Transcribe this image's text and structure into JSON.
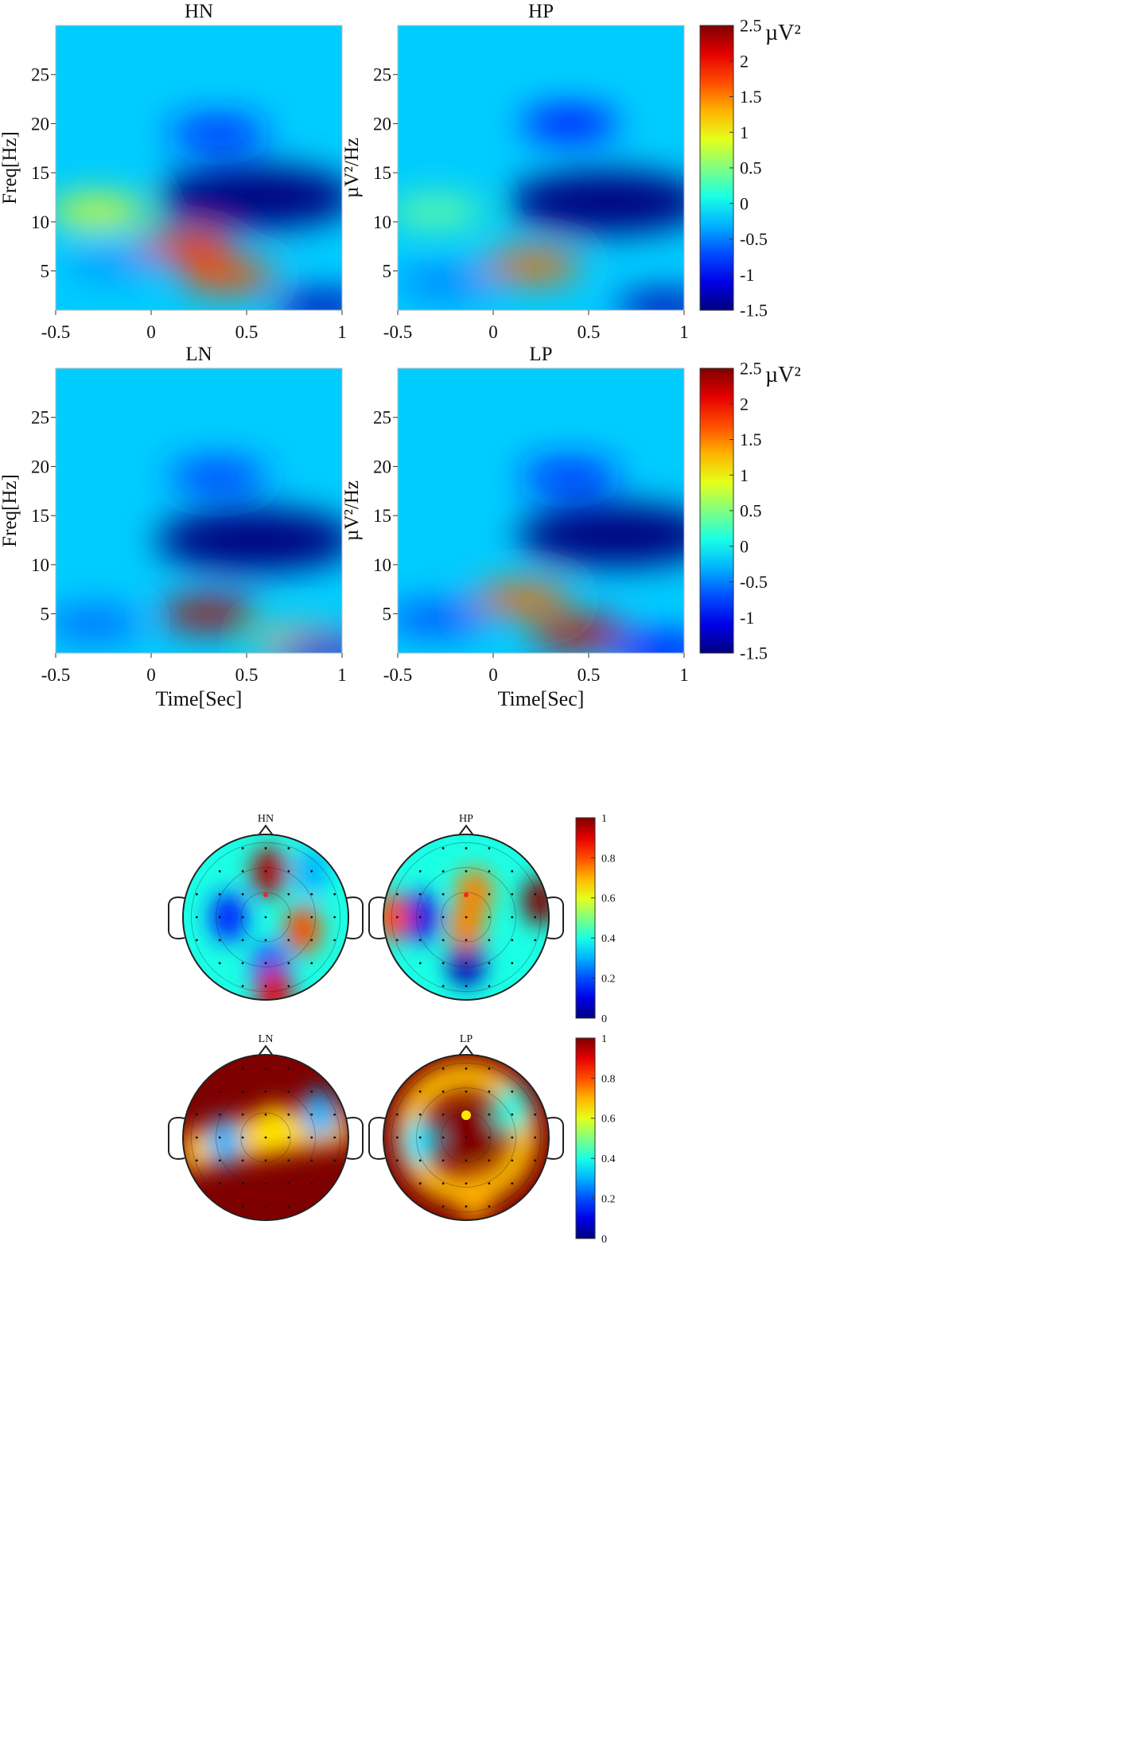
{
  "chart_data": [
    {
      "type": "heatmap",
      "title": "HN",
      "xlabel": "",
      "ylabel": "Freq[Hz]",
      "xlim": [
        -0.5,
        1
      ],
      "ylim": [
        1,
        30
      ],
      "x_ticks": [
        "-0.5",
        "0",
        "0.5",
        "1"
      ],
      "y_ticks": [
        "5",
        "10",
        "15",
        "20",
        "25"
      ],
      "colormap": "jet",
      "blobs": [
        {
          "t": 0.55,
          "f": 12.5,
          "value": -1.5
        },
        {
          "t": 0.35,
          "f": 19,
          "value": -0.9
        },
        {
          "t": -0.28,
          "f": 11,
          "value": 0.9
        },
        {
          "t": 0.18,
          "f": 7.5,
          "value": 1.8
        },
        {
          "t": 0.4,
          "f": 4.5,
          "value": 1.7
        },
        {
          "t": -0.2,
          "f": 5.8,
          "value": -0.4
        },
        {
          "t": 0.9,
          "f": 1.3,
          "value": -1.3
        }
      ]
    },
    {
      "type": "heatmap",
      "title": "HP",
      "xlabel": "",
      "ylabel": "µV²/Hz",
      "xlim": [
        -0.5,
        1
      ],
      "ylim": [
        1,
        30
      ],
      "x_ticks": [
        "-0.5",
        "0",
        "0.5",
        "1"
      ],
      "y_ticks": [
        "5",
        "10",
        "15",
        "20",
        "25"
      ],
      "colormap": "jet",
      "blobs": [
        {
          "t": 0.6,
          "f": 12,
          "value": -1.5
        },
        {
          "t": 0.4,
          "f": 20,
          "value": -1.0
        },
        {
          "t": -0.3,
          "f": 11,
          "value": 0.4
        },
        {
          "t": 0.2,
          "f": 5.5,
          "value": 1.6
        },
        {
          "t": -0.25,
          "f": 3.8,
          "value": -0.5
        },
        {
          "t": 0.9,
          "f": 1.3,
          "value": -1.3
        }
      ]
    },
    {
      "type": "heatmap",
      "title": "LN",
      "xlabel": "Time[Sec]",
      "ylabel": "Freq[Hz]",
      "xlim": [
        -0.5,
        1
      ],
      "ylim": [
        1,
        30
      ],
      "x_ticks": [
        "-0.5",
        "0",
        "0.5",
        "1"
      ],
      "y_ticks": [
        "5",
        "10",
        "15",
        "20",
        "25"
      ],
      "colormap": "jet",
      "blobs": [
        {
          "t": 0.55,
          "f": 12.5,
          "value": -1.5
        },
        {
          "t": 0.35,
          "f": 19,
          "value": -0.8
        },
        {
          "t": 0.3,
          "f": 5,
          "value": 2.3
        },
        {
          "t": -0.3,
          "f": 4,
          "value": -0.6
        },
        {
          "t": 0.8,
          "f": 2,
          "value": 1.2
        },
        {
          "t": 0.9,
          "f": 1.2,
          "value": -1.2
        }
      ]
    },
    {
      "type": "heatmap",
      "title": "LP",
      "xlabel": "Time[Sec]",
      "ylabel": "µV²/Hz",
      "xlim": [
        -0.5,
        1
      ],
      "ylim": [
        1,
        30
      ],
      "x_ticks": [
        "-0.5",
        "0",
        "0.5",
        "1"
      ],
      "y_ticks": [
        "5",
        "10",
        "15",
        "20",
        "25"
      ],
      "colormap": "jet",
      "blobs": [
        {
          "t": 0.65,
          "f": 13,
          "value": -1.5
        },
        {
          "t": 0.4,
          "f": 19,
          "value": -0.9
        },
        {
          "t": 0.15,
          "f": 6.5,
          "value": 1.6
        },
        {
          "t": 0.45,
          "f": 3,
          "value": 2.2
        },
        {
          "t": -0.3,
          "f": 4.5,
          "value": -0.7
        },
        {
          "t": 0.9,
          "f": 1.2,
          "value": -1.0
        }
      ]
    },
    {
      "type": "topoplot",
      "title": "HN",
      "range": [
        0,
        1
      ],
      "colormap": "jet",
      "marker": {
        "color": "#ff2020",
        "size": "small"
      },
      "blobs": [
        {
          "x": 0.05,
          "y": 0.55,
          "value": 0.95
        },
        {
          "x": -0.45,
          "y": 0.0,
          "value": 0.15
        },
        {
          "x": 0.45,
          "y": -0.15,
          "value": 0.8
        },
        {
          "x": 0.05,
          "y": -0.6,
          "value": 0.2
        },
        {
          "x": 0.1,
          "y": -0.9,
          "value": 0.9
        },
        {
          "x": 0.55,
          "y": 0.55,
          "value": 0.3
        }
      ]
    },
    {
      "type": "topoplot",
      "title": "HP",
      "range": [
        0,
        1
      ],
      "colormap": "jet",
      "marker": {
        "color": "#ff2020",
        "size": "small"
      },
      "blobs": [
        {
          "x": -0.55,
          "y": 0.0,
          "value": 0.1
        },
        {
          "x": 0.0,
          "y": -0.55,
          "value": 0.05
        },
        {
          "x": 0.1,
          "y": 0.3,
          "value": 0.75
        },
        {
          "x": 0.0,
          "y": -0.1,
          "value": 0.75
        },
        {
          "x": 0.9,
          "y": 0.2,
          "value": 1.0
        },
        {
          "x": -0.9,
          "y": 0.0,
          "value": 0.8
        }
      ]
    },
    {
      "type": "topoplot",
      "title": "LN",
      "range": [
        0,
        1
      ],
      "colormap": "jet",
      "marker": null,
      "blobs": [
        {
          "x": -0.5,
          "y": -0.05,
          "value": 0.3
        },
        {
          "x": 0.65,
          "y": 0.28,
          "value": 0.3
        },
        {
          "x": 0.1,
          "y": 0.1,
          "value": 0.65
        }
      ]
    },
    {
      "type": "topoplot",
      "title": "LP",
      "range": [
        0,
        1
      ],
      "colormap": "jet",
      "marker": {
        "color": "#ffe800",
        "size": "large"
      },
      "blobs": [
        {
          "x": -0.55,
          "y": -0.05,
          "value": 0.35
        },
        {
          "x": 0.55,
          "y": 0.35,
          "value": 0.4
        },
        {
          "x": 0.1,
          "y": -0.7,
          "value": 0.7
        }
      ]
    }
  ],
  "colorbars": [
    {
      "unit": "µV²",
      "ticks": [
        "2.5",
        "2",
        "1.5",
        "1",
        "0.5",
        "0",
        "-0.5",
        "-1",
        "-1.5"
      ]
    },
    {
      "unit": "µV²",
      "ticks": [
        "2.5",
        "2",
        "1.5",
        "1",
        "0.5",
        "0",
        "-0.5",
        "-1",
        "-1.5"
      ]
    },
    {
      "unit": "",
      "ticks": [
        "1",
        "0.8",
        "0.6",
        "0.4",
        "0.2",
        "0"
      ]
    },
    {
      "unit": "",
      "ticks": [
        "1",
        "0.8",
        "0.6",
        "0.4",
        "0.2",
        "0"
      ]
    }
  ]
}
